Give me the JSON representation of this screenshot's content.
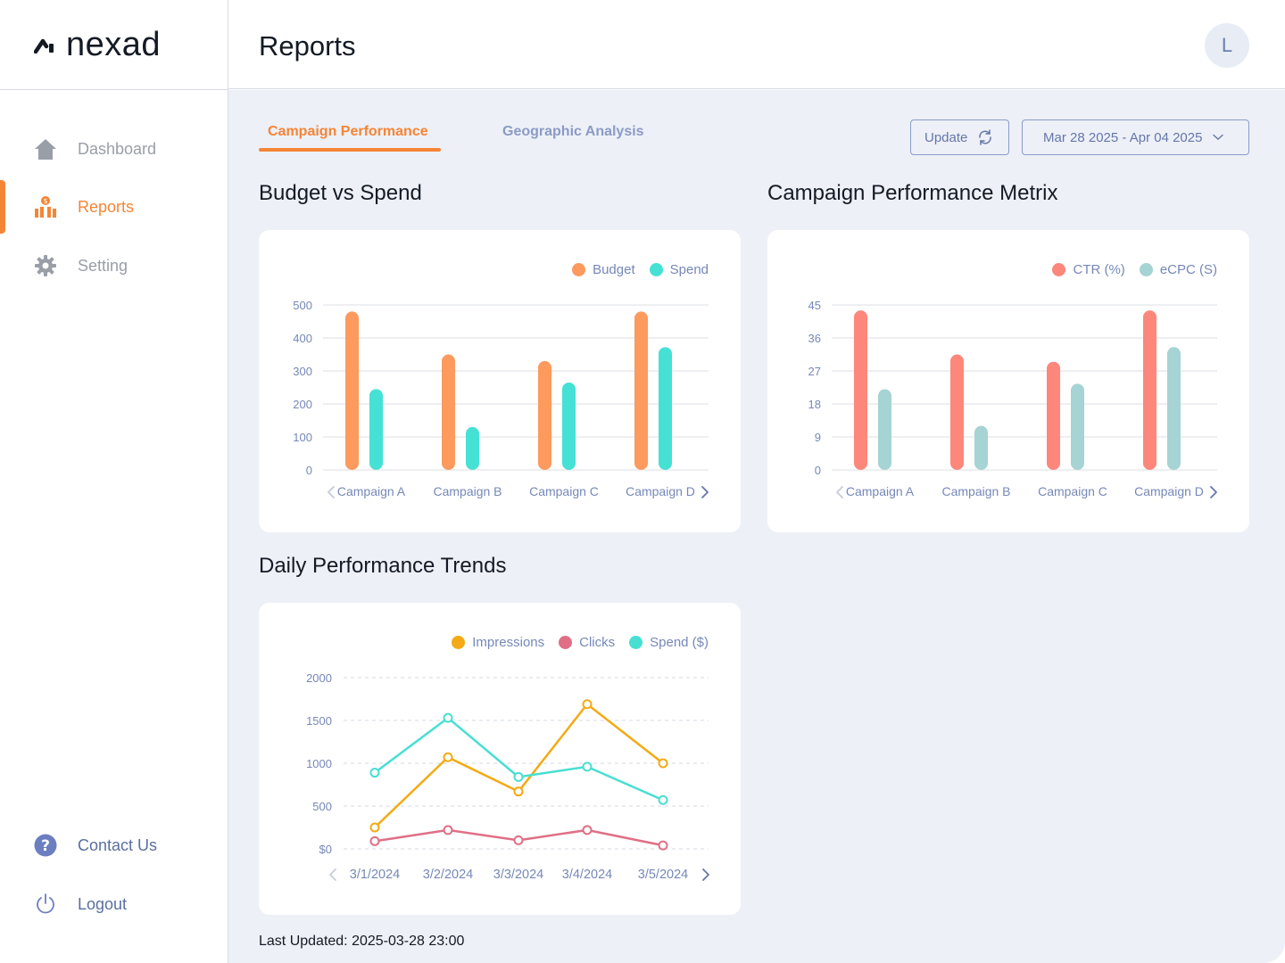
{
  "app": {
    "name": "nexad"
  },
  "header": {
    "title": "Reports",
    "avatar_initial": "L"
  },
  "sidebar": {
    "items": [
      {
        "label": "Dashboard",
        "icon": "home-icon"
      },
      {
        "label": "Reports",
        "icon": "reports-icon",
        "active": true
      },
      {
        "label": "Setting",
        "icon": "gear-icon"
      }
    ],
    "bottom": [
      {
        "label": "Contact Us",
        "icon": "help-icon"
      },
      {
        "label": "Logout",
        "icon": "power-icon"
      }
    ]
  },
  "tabs": [
    {
      "label": "Campaign Performance",
      "active": true
    },
    {
      "label": "Geographic Analysis"
    }
  ],
  "toolbar": {
    "update_label": "Update",
    "date_range": "Mar 28 2025 - Apr 04 2025"
  },
  "colors": {
    "accent": "#f58536",
    "budget": "#fd9a5e",
    "spend": "#45e1d5",
    "ctr": "#fd877b",
    "ecpc": "#a6d3d3",
    "impressions": "#f4aa14",
    "clicks": "#e06f86",
    "spend_line": "#48dfd3"
  },
  "sections": {
    "budget": "Budget vs Spend",
    "metrix": "Campaign Performance Metrix",
    "trends": "Daily Performance Trends"
  },
  "chart_data": [
    {
      "type": "bar",
      "title": "Budget vs Spend",
      "categories": [
        "Campaign A",
        "Campaign B",
        "Campaign C",
        "Campaign D"
      ],
      "series": [
        {
          "name": "Budget",
          "values": [
            480,
            350,
            330,
            480
          ]
        },
        {
          "name": "Spend",
          "values": [
            245,
            130,
            265,
            372
          ]
        }
      ],
      "yticks": [
        "0",
        "100",
        "200",
        "300",
        "400",
        "500"
      ],
      "ylim": [
        0,
        500
      ],
      "grid": true,
      "legend": "top-right"
    },
    {
      "type": "bar",
      "title": "Campaign Performance Metrix",
      "categories": [
        "Campaign A",
        "Campaign B",
        "Campaign C",
        "Campaign D"
      ],
      "series": [
        {
          "name": "CTR (%)",
          "values": [
            43.5,
            31.5,
            29.5,
            43.5
          ]
        },
        {
          "name": "eCPC (S)",
          "values": [
            22,
            12,
            23.5,
            33.5
          ]
        }
      ],
      "yticks": [
        "0",
        "9",
        "18",
        "27",
        "36",
        "45"
      ],
      "ylim": [
        0,
        45
      ],
      "grid": true,
      "legend": "top-right"
    },
    {
      "type": "line",
      "title": "Daily Performance Trends",
      "x": [
        "3/1/2024",
        "3/2/2024",
        "3/3/2024",
        "3/4/2024",
        "3/5/2024"
      ],
      "series": [
        {
          "name": "Impressions",
          "values": [
            250,
            1070,
            670,
            1690,
            1000
          ]
        },
        {
          "name": "Clicks",
          "values": [
            90,
            220,
            100,
            220,
            40
          ]
        },
        {
          "name": "Spend ($)",
          "values": [
            890,
            1530,
            840,
            960,
            570
          ]
        }
      ],
      "yticks": [
        "$0",
        "500",
        "1000",
        "1500",
        "2000"
      ],
      "ylim": [
        0,
        2000
      ],
      "grid": "dashed",
      "legend": "top-right"
    }
  ],
  "footer": {
    "last_updated": "Last Updated: 2025-03-28 23:00"
  }
}
